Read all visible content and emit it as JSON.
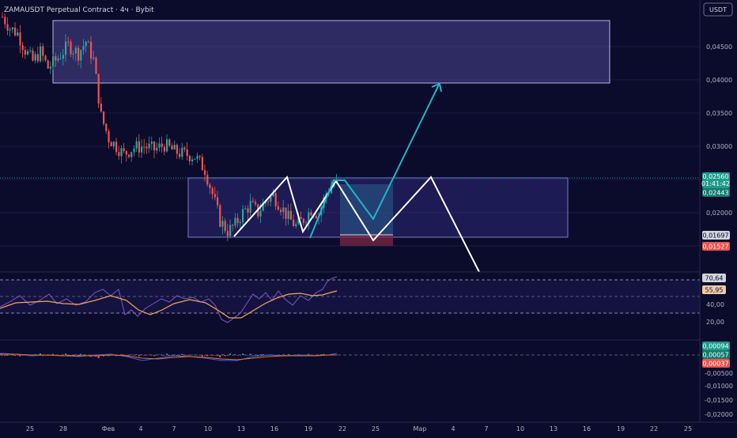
{
  "header": {
    "title": "ZAMAUSDT Perpetual Contract · 4ч · Bybit",
    "currency_button": "USDT"
  },
  "colors": {
    "background": "#0b0b2b",
    "up_candle": "#26a69a",
    "down_candle": "#ef5350",
    "zone_fill": "#6f63c9",
    "projection_white": "#ffffff",
    "projection_teal": "#1fb6c9",
    "rsi_line": "#7e57c2",
    "rsi_ma": "#f7a35c",
    "macd_line": "#2962ff",
    "signal_line": "#ff6d00"
  },
  "price_axis": {
    "ticks": [
      "0,04500",
      "0,04000",
      "0,03500",
      "0,03000",
      "0,02000"
    ]
  },
  "price_badges": {
    "last_price": "0,02560",
    "countdown": "01:41:42",
    "price_2": "0,02443",
    "price_3": "0,01697",
    "price_4": "0,01527"
  },
  "rsi_axis": {
    "ticks": [
      "40,00",
      "20,00"
    ],
    "badge_rsi": "70,64",
    "badge_ma": "55,95"
  },
  "macd_axis": {
    "ticks": [
      "-0,00500",
      "-0,01000",
      "-0,01500",
      "-0,02000"
    ],
    "badge_1": "0,00094",
    "badge_2": "0,00057",
    "badge_3": "0,00037"
  },
  "time_axis": {
    "labels": [
      "25",
      "28",
      "Фев",
      "4",
      "7",
      "10",
      "13",
      "16",
      "19",
      "22",
      "25",
      "Мар",
      "4",
      "7",
      "10",
      "13",
      "16",
      "19",
      "22",
      "25"
    ]
  },
  "chart_data": {
    "type": "candlestick",
    "symbol": "ZAMAUSDT",
    "interval": "4ч",
    "exchange": "Bybit",
    "y_range": [
      0.0135,
      0.051
    ],
    "close_path": [
      [
        0,
        0.0495
      ],
      [
        3,
        0.0478
      ],
      [
        6,
        0.047
      ],
      [
        9,
        0.0445
      ],
      [
        12,
        0.0428
      ],
      [
        15,
        0.0442
      ],
      [
        18,
        0.0418
      ],
      [
        22,
        0.0433
      ],
      [
        26,
        0.0452
      ],
      [
        30,
        0.044
      ],
      [
        33,
        0.0458
      ],
      [
        36,
        0.043
      ],
      [
        39,
        0.0345
      ],
      [
        42,
        0.0312
      ],
      [
        45,
        0.03
      ],
      [
        48,
        0.0288
      ],
      [
        52,
        0.0298
      ],
      [
        56,
        0.03
      ],
      [
        60,
        0.0295
      ],
      [
        64,
        0.0302
      ],
      [
        68,
        0.0292
      ],
      [
        72,
        0.0288
      ],
      [
        76,
        0.0285
      ],
      [
        80,
        0.0265
      ],
      [
        83,
        0.0228
      ],
      [
        86,
        0.0188
      ],
      [
        89,
        0.0172
      ],
      [
        92,
        0.0182
      ],
      [
        95,
        0.02
      ],
      [
        98,
        0.0212
      ],
      [
        101,
        0.02
      ],
      [
        104,
        0.0218
      ],
      [
        107,
        0.0226
      ],
      [
        110,
        0.021
      ],
      [
        113,
        0.0192
      ],
      [
        116,
        0.018
      ],
      [
        119,
        0.019
      ],
      [
        122,
        0.0205
      ],
      [
        125,
        0.0198
      ],
      [
        128,
        0.023
      ],
      [
        132,
        0.025
      ]
    ],
    "zones": [
      {
        "from_price": 0.0395,
        "to_price": 0.0485
      },
      {
        "from_price": 0.0167,
        "to_price": 0.0253
      }
    ],
    "rsi": {
      "range": [
        10,
        80
      ],
      "levels": [
        70,
        50,
        30
      ],
      "last": 70.64,
      "ma_last": 55.95
    },
    "macd": {
      "range": [
        -0.021,
        0.0015
      ],
      "last": 0.00094,
      "signal": 0.00057,
      "hist": 0.00037
    }
  }
}
